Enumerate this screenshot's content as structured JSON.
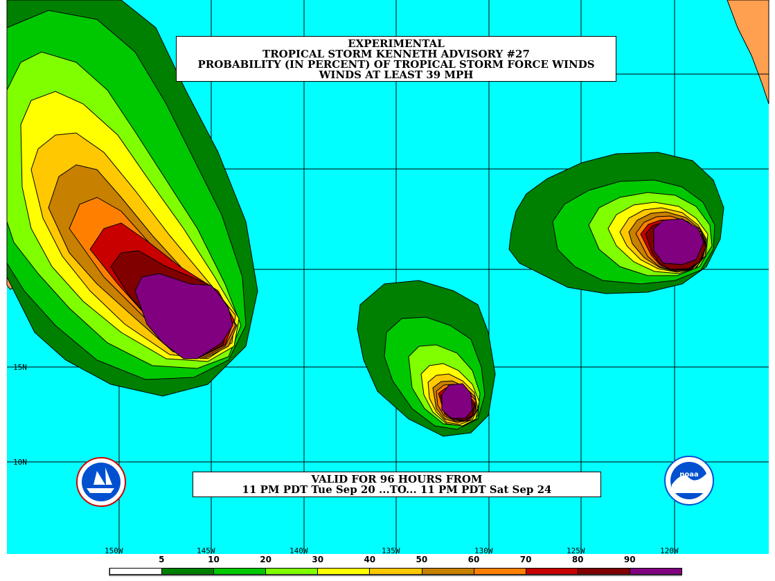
{
  "title": {
    "line1": "EXPERIMENTAL",
    "line2": "TROPICAL STORM KENNETH ADVISORY #27",
    "line3": "PROBABILITY (IN PERCENT) OF TROPICAL STORM FORCE WINDS",
    "line4": "WINDS AT LEAST 39 MPH"
  },
  "valid": {
    "line1": "VALID FOR 96 HOURS FROM",
    "line2": "11 PM PDT Tue Sep 20 ...TO... 11 PM PDT Sat Sep 24"
  },
  "latitudes": [
    "15N",
    "10N"
  ],
  "longitudes": [
    "150W",
    "145W",
    "140W",
    "135W",
    "130W",
    "125W",
    "120W"
  ],
  "legend": {
    "labels": [
      "5",
      "10",
      "20",
      "30",
      "40",
      "50",
      "60",
      "70",
      "80",
      "90"
    ],
    "colors": [
      "#ffffff",
      "#008000",
      "#00c800",
      "#80ff00",
      "#ffff00",
      "#ffc800",
      "#c88000",
      "#ff8000",
      "#c80000",
      "#800000",
      "#800080"
    ]
  },
  "colors": {
    "ocean": "#00ffff",
    "land": "#ffa050",
    "grid": "#000000"
  },
  "logos": [
    "nws-logo",
    "noaa-logo"
  ]
}
